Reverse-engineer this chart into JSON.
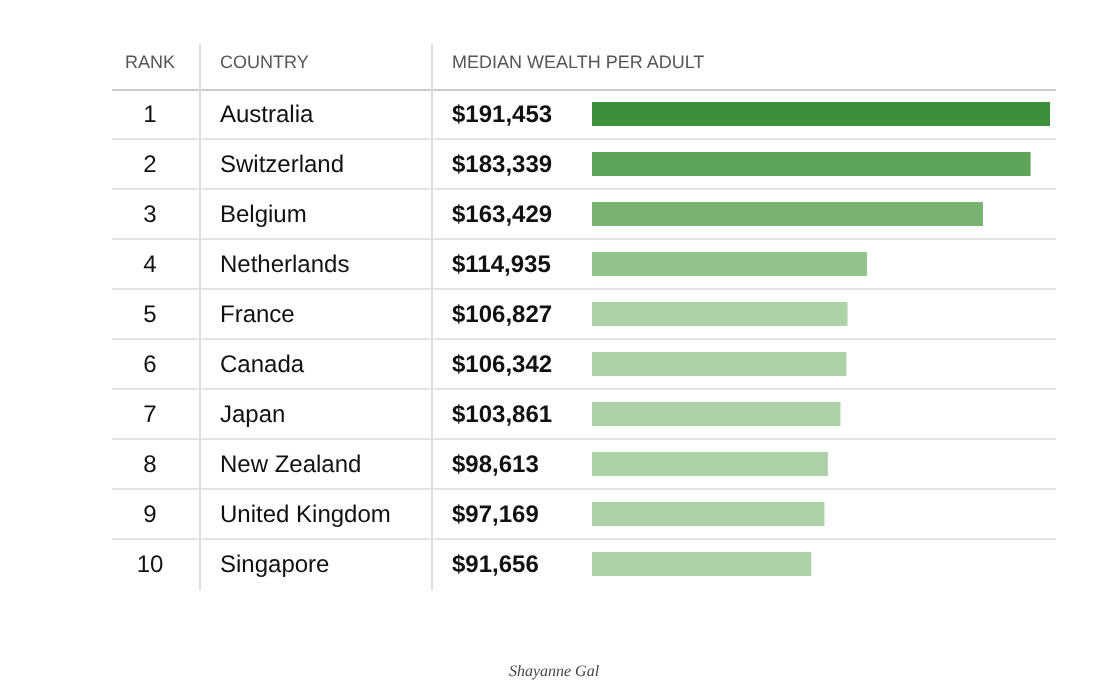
{
  "chart_data": {
    "type": "bar",
    "orientation": "horizontal",
    "categories": [
      "Australia",
      "Switzerland",
      "Belgium",
      "Netherlands",
      "France",
      "Canada",
      "Japan",
      "New Zealand",
      "United Kingdom",
      "Singapore"
    ],
    "values": [
      191453,
      183339,
      163429,
      114935,
      106827,
      106342,
      103861,
      98613,
      97169,
      91656
    ],
    "value_labels": [
      "$191,453",
      "$183,339",
      "$163,429",
      "$114,935",
      "$106,827",
      "$106,342",
      "$103,861",
      "$98,613",
      "$97,169",
      "$91,656"
    ],
    "colors": [
      "#3d8f3d",
      "#5ea35a",
      "#79b372",
      "#94c28c",
      "#aed2a8",
      "#aed2a8",
      "#aed2a8",
      "#aed2a8",
      "#aed2a8",
      "#aed2a8"
    ],
    "annotations": [
      "RANK",
      "COUNTRY",
      "MEDIAN WEALTH PER ADULT",
      "Shayanne Gal",
      "1",
      "2",
      "3",
      "4",
      "5",
      "6",
      "7",
      "8",
      "9",
      "10"
    ]
  }
}
